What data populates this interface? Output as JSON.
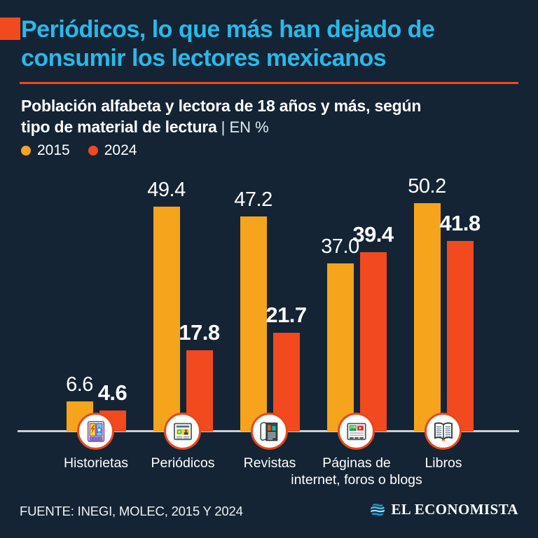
{
  "header": {
    "title_lines": [
      "Periódicos, lo que más han dejado de",
      "consumir los lectores mexicanos"
    ],
    "title_color": "#29b9e9",
    "accent_color": "#f2491e",
    "subtitle_line1": "Población alfabeta y lectora de 18 años y más, según",
    "subtitle_line2_bold": "tipo de material de lectura",
    "subtitle_note": "| EN %"
  },
  "legend": {
    "items": [
      {
        "label": "2015",
        "color": "#f6a41c"
      },
      {
        "label": "2024",
        "color": "#f2491e"
      }
    ]
  },
  "chart_data": {
    "type": "bar",
    "title": "Periódicos, lo que más han dejado de consumir los lectores mexicanos",
    "subtitle": "Población alfabeta y lectora de 18 años y más, según tipo de material de lectura | EN %",
    "categories": [
      "Historietas",
      "Periódicos",
      "Revistas",
      "Páginas de internet, foros o blogs",
      "Libros"
    ],
    "categories_display": [
      [
        "Historietas"
      ],
      [
        "Periódicos"
      ],
      [
        "Revistas"
      ],
      [
        "Páginas de",
        "internet, foros o blogs"
      ],
      [
        "Libros"
      ]
    ],
    "series": [
      {
        "name": "2015",
        "color": "#f6a41c",
        "label_style": "regular",
        "values": [
          6.6,
          49.4,
          47.2,
          37.0,
          50.2
        ]
      },
      {
        "name": "2024",
        "color": "#f2491e",
        "label_style": "bold",
        "values": [
          4.6,
          17.8,
          21.7,
          39.4,
          41.8
        ]
      }
    ],
    "ylim": [
      0,
      55
    ],
    "grid": false,
    "legend_position": "top-left",
    "value_labels": "above-bars",
    "icons": [
      "comic-icon",
      "newspaper-icon",
      "magazine-icon",
      "webpage-icon",
      "open-book-icon"
    ]
  },
  "footer": {
    "source": "FUENTE: INEGI, MOLEC, 2015 Y 2024",
    "brand": "EL ECONOMISTA"
  }
}
